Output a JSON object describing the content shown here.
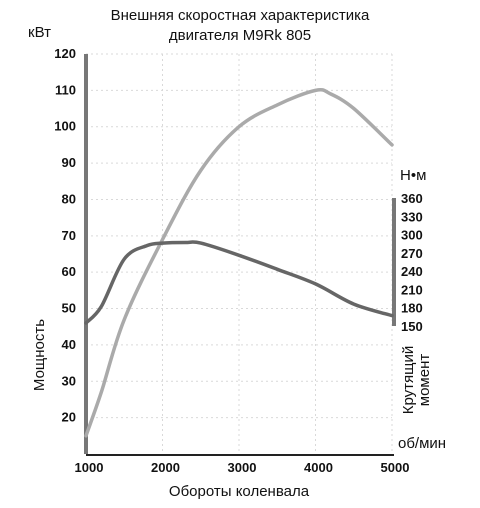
{
  "chart_data": {
    "type": "line",
    "title": [
      "Внешняя скоростная характеристика",
      "двигателя M9Rk 805"
    ],
    "xlabel": "Обороты коленвала",
    "x_unit": "об/мин",
    "ylabel_left": "Мощность",
    "y_unit_left": "кВт",
    "ylabel_right": [
      "Крутящий",
      "момент"
    ],
    "y_unit_right": "Н•м",
    "xlim": [
      1000,
      5000
    ],
    "ylim_left": [
      10,
      120
    ],
    "ylim_right": [
      150,
      360
    ],
    "x_ticks": [
      1000,
      2000,
      3000,
      4000,
      5000
    ],
    "y_ticks_left": [
      20,
      30,
      40,
      50,
      60,
      70,
      80,
      90,
      100,
      110,
      120
    ],
    "y_ticks_right": [
      150,
      180,
      210,
      240,
      270,
      300,
      330,
      360
    ],
    "grid": true,
    "series": [
      {
        "axis": "left",
        "color": "#aaaaaa",
        "x": [
          1000,
          1200,
          1500,
          2000,
          2500,
          3000,
          3500,
          4000,
          4200,
          4500,
          5000
        ],
        "y": [
          15,
          27,
          47,
          69,
          88,
          100,
          106,
          110,
          109,
          105,
          95
        ]
      },
      {
        "axis": "right",
        "color": "#666666",
        "x": [
          1000,
          1200,
          1500,
          1800,
          2000,
          2300,
          2500,
          3000,
          3500,
          4000,
          4500,
          5000
        ],
        "y": [
          155,
          182,
          260,
          282,
          286,
          287,
          286,
          266,
          243,
          219,
          186,
          167
        ]
      }
    ]
  }
}
